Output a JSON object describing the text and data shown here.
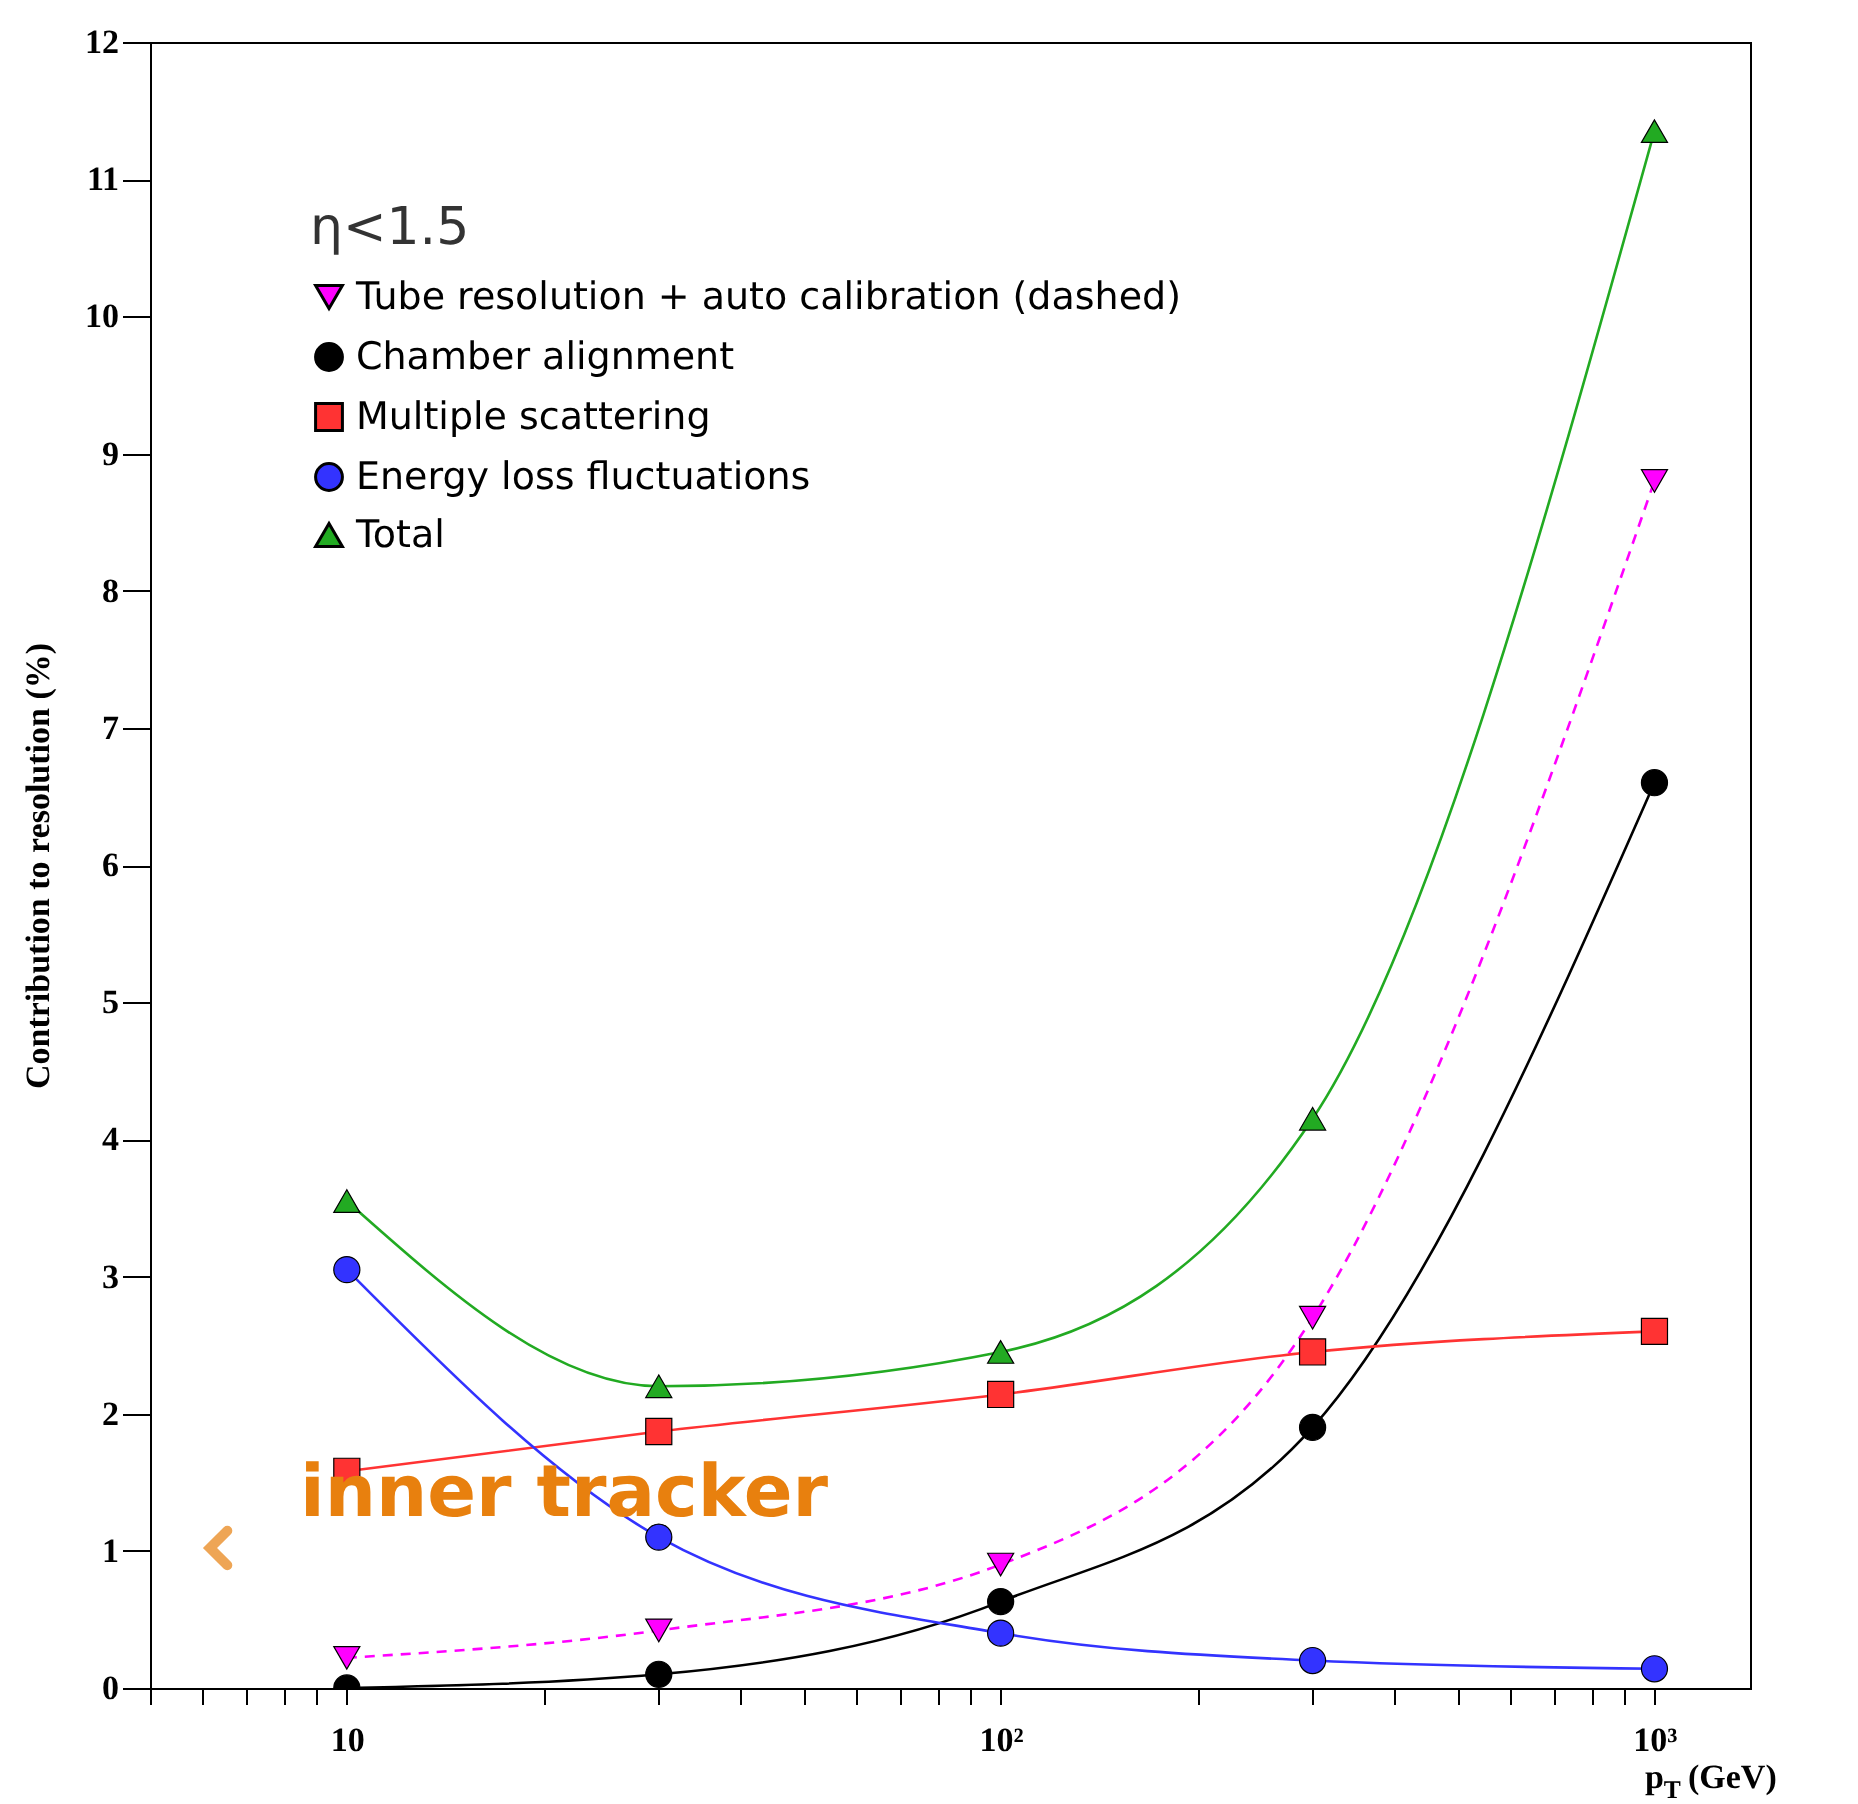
{
  "chart_data": {
    "type": "line",
    "ylabel": "Contribution to resolution (%)",
    "xlabel": "p$_{T}$ (GeV)",
    "legend_title": "η<1.5",
    "legend": "top left",
    "log": "x",
    "grid": false,
    "x": [
      10,
      30,
      100,
      300,
      1000
    ],
    "xlim": [
      5,
      1400
    ],
    "xticks": [
      {
        "value": 5,
        "label": null
      },
      {
        "value": 6,
        "label": null
      },
      {
        "value": 7,
        "label": null
      },
      {
        "value": 8,
        "label": null
      },
      {
        "value": 9,
        "label": null
      },
      {
        "value": 10,
        "label": "10"
      },
      {
        "value": 20,
        "label": null
      },
      {
        "value": 30,
        "label": null
      },
      {
        "value": 40,
        "label": null
      },
      {
        "value": 50,
        "label": null
      },
      {
        "value": 60,
        "label": null
      },
      {
        "value": 70,
        "label": null
      },
      {
        "value": 80,
        "label": null
      },
      {
        "value": 90,
        "label": null
      },
      {
        "value": 100,
        "label": "10²"
      },
      {
        "value": 200,
        "label": null
      },
      {
        "value": 300,
        "label": null
      },
      {
        "value": 400,
        "label": null
      },
      {
        "value": 500,
        "label": null
      },
      {
        "value": 600,
        "label": null
      },
      {
        "value": 700,
        "label": null
      },
      {
        "value": 800,
        "label": null
      },
      {
        "value": 900,
        "label": null
      },
      {
        "value": 1000,
        "label": "10³"
      }
    ],
    "ylim": [
      0,
      12
    ],
    "yticks": [
      0,
      1,
      2,
      3,
      4,
      5,
      6,
      7,
      8,
      9,
      10,
      11,
      12
    ],
    "series": [
      {
        "name": "Tube resolution + auto calibration (dashed)",
        "color": "#ff00ff",
        "marker": "triangle-down",
        "line_style": "dashed",
        "values": [
          0.22,
          0.42,
          0.9,
          2.7,
          8.8
        ]
      },
      {
        "name": "Chamber alignment",
        "color": "#000000",
        "marker": "circle",
        "line_style": "solid",
        "values": [
          0,
          0.1,
          0.63,
          1.9,
          6.6
        ]
      },
      {
        "name": "Multiple scattering",
        "color": "#ff3333",
        "marker": "square",
        "line_style": "solid",
        "values": [
          1.58,
          1.87,
          2.14,
          2.45,
          2.6
        ]
      },
      {
        "name": "Energy loss fluctuations",
        "color": "#3333ff",
        "marker": "circle",
        "line_style": "solid",
        "values": [
          3.05,
          1.1,
          0.4,
          0.2,
          0.14
        ]
      },
      {
        "name": "Total",
        "color": "#22aa22",
        "marker": "triangle",
        "line_style": "solid",
        "values": [
          3.55,
          2.2,
          2.45,
          4.15,
          11.35
        ]
      }
    ],
    "annotations": [
      "inner tracker"
    ]
  }
}
